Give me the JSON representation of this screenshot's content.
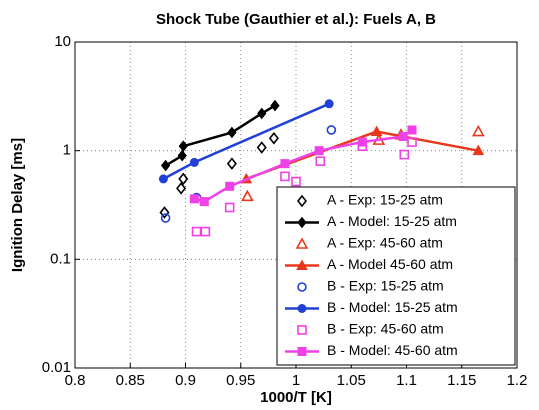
{
  "chart_data": {
    "type": "scatter",
    "title": "Shock Tube (Gauthier et al.): Fuels A, B",
    "xlabel": "1000/T [K]",
    "ylabel": "Ignition Delay [ms]",
    "xlim": [
      0.8,
      1.2
    ],
    "xticks": [
      0.8,
      0.85,
      0.9,
      0.95,
      1,
      1.05,
      1.1,
      1.15,
      1.2
    ],
    "ylim": [
      0.01,
      10
    ],
    "yticks": [
      0.01,
      0.1,
      1,
      10
    ],
    "ylog": true,
    "grid": true,
    "legend": "lower right",
    "series": [
      {
        "name": "A - Exp: 15-25 atm",
        "color": "#000000",
        "marker": "diamond",
        "filled": false,
        "line": false,
        "x": [
          0.881,
          0.896,
          0.898,
          0.942,
          0.969,
          0.98
        ],
        "values": [
          0.27,
          0.45,
          0.55,
          0.76,
          1.07,
          1.3
        ]
      },
      {
        "name": "A - Model: 15-25 atm",
        "color": "#000000",
        "marker": "diamond",
        "filled": true,
        "line": true,
        "x": [
          0.882,
          0.897,
          0.898,
          0.942,
          0.969,
          0.981
        ],
        "values": [
          0.73,
          0.9,
          1.1,
          1.47,
          2.2,
          2.6
        ]
      },
      {
        "name": "A - Exp: 45-60 atm",
        "color": "#e8381c",
        "marker": "triangle",
        "filled": false,
        "line": false,
        "x": [
          0.956,
          1.075,
          1.095,
          1.165
        ],
        "values": [
          0.38,
          1.25,
          1.4,
          1.5
        ]
      },
      {
        "name": "A - Model 45-60 atm",
        "color": "#e8381c",
        "marker": "triangle",
        "filled": true,
        "line": true,
        "x": [
          0.955,
          1.073,
          1.165
        ],
        "values": [
          0.55,
          1.5,
          1.0
        ]
      },
      {
        "name": "B - Exp: 15-25 atm",
        "color": "#2040d8",
        "marker": "circle",
        "filled": false,
        "line": false,
        "x": [
          0.882,
          0.91,
          1.032
        ],
        "values": [
          0.24,
          0.37,
          1.55
        ]
      },
      {
        "name": "B - Model: 15-25 atm",
        "color": "#2040d8",
        "marker": "circle",
        "filled": true,
        "line": true,
        "x": [
          0.88,
          0.908,
          1.03
        ],
        "values": [
          0.55,
          0.78,
          2.7
        ]
      },
      {
        "name": "B - Exp: 45-60 atm",
        "color": "#f040e8",
        "marker": "square",
        "filled": false,
        "line": false,
        "x": [
          0.91,
          0.918,
          0.94,
          0.99,
          1.0,
          1.022,
          1.06,
          1.098,
          1.105
        ],
        "values": [
          0.18,
          0.18,
          0.3,
          0.58,
          0.52,
          0.8,
          1.1,
          0.92,
          1.2
        ]
      },
      {
        "name": "B - Model: 45-60 atm",
        "color": "#f040e8",
        "marker": "square",
        "filled": true,
        "line": true,
        "x": [
          0.908,
          0.917,
          0.94,
          0.99,
          1.021,
          1.06,
          1.097,
          1.105
        ],
        "values": [
          0.36,
          0.34,
          0.47,
          0.76,
          1.0,
          1.2,
          1.35,
          1.55
        ]
      }
    ]
  }
}
